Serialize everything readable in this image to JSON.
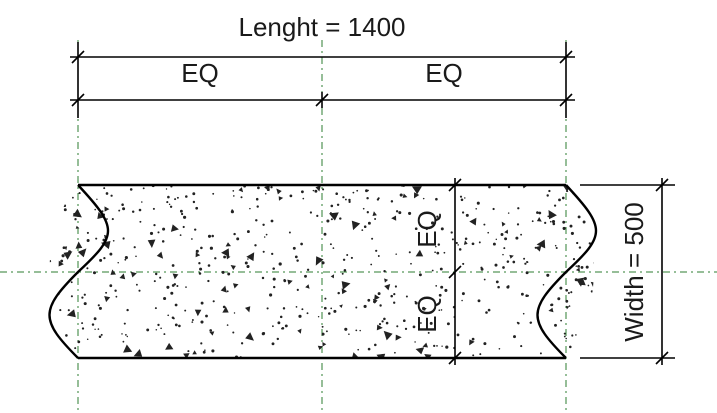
{
  "diagram": {
    "length_label": "Lenght = 1400",
    "width_label": "Width = 500",
    "eq_left": "EQ",
    "eq_right": "EQ",
    "eq_top": "EQ",
    "eq_bottom": "EQ",
    "colors": {
      "line": "#000000",
      "centerline": "#2e7d32",
      "hatch": "#222222",
      "background": "#ffffff"
    }
  }
}
